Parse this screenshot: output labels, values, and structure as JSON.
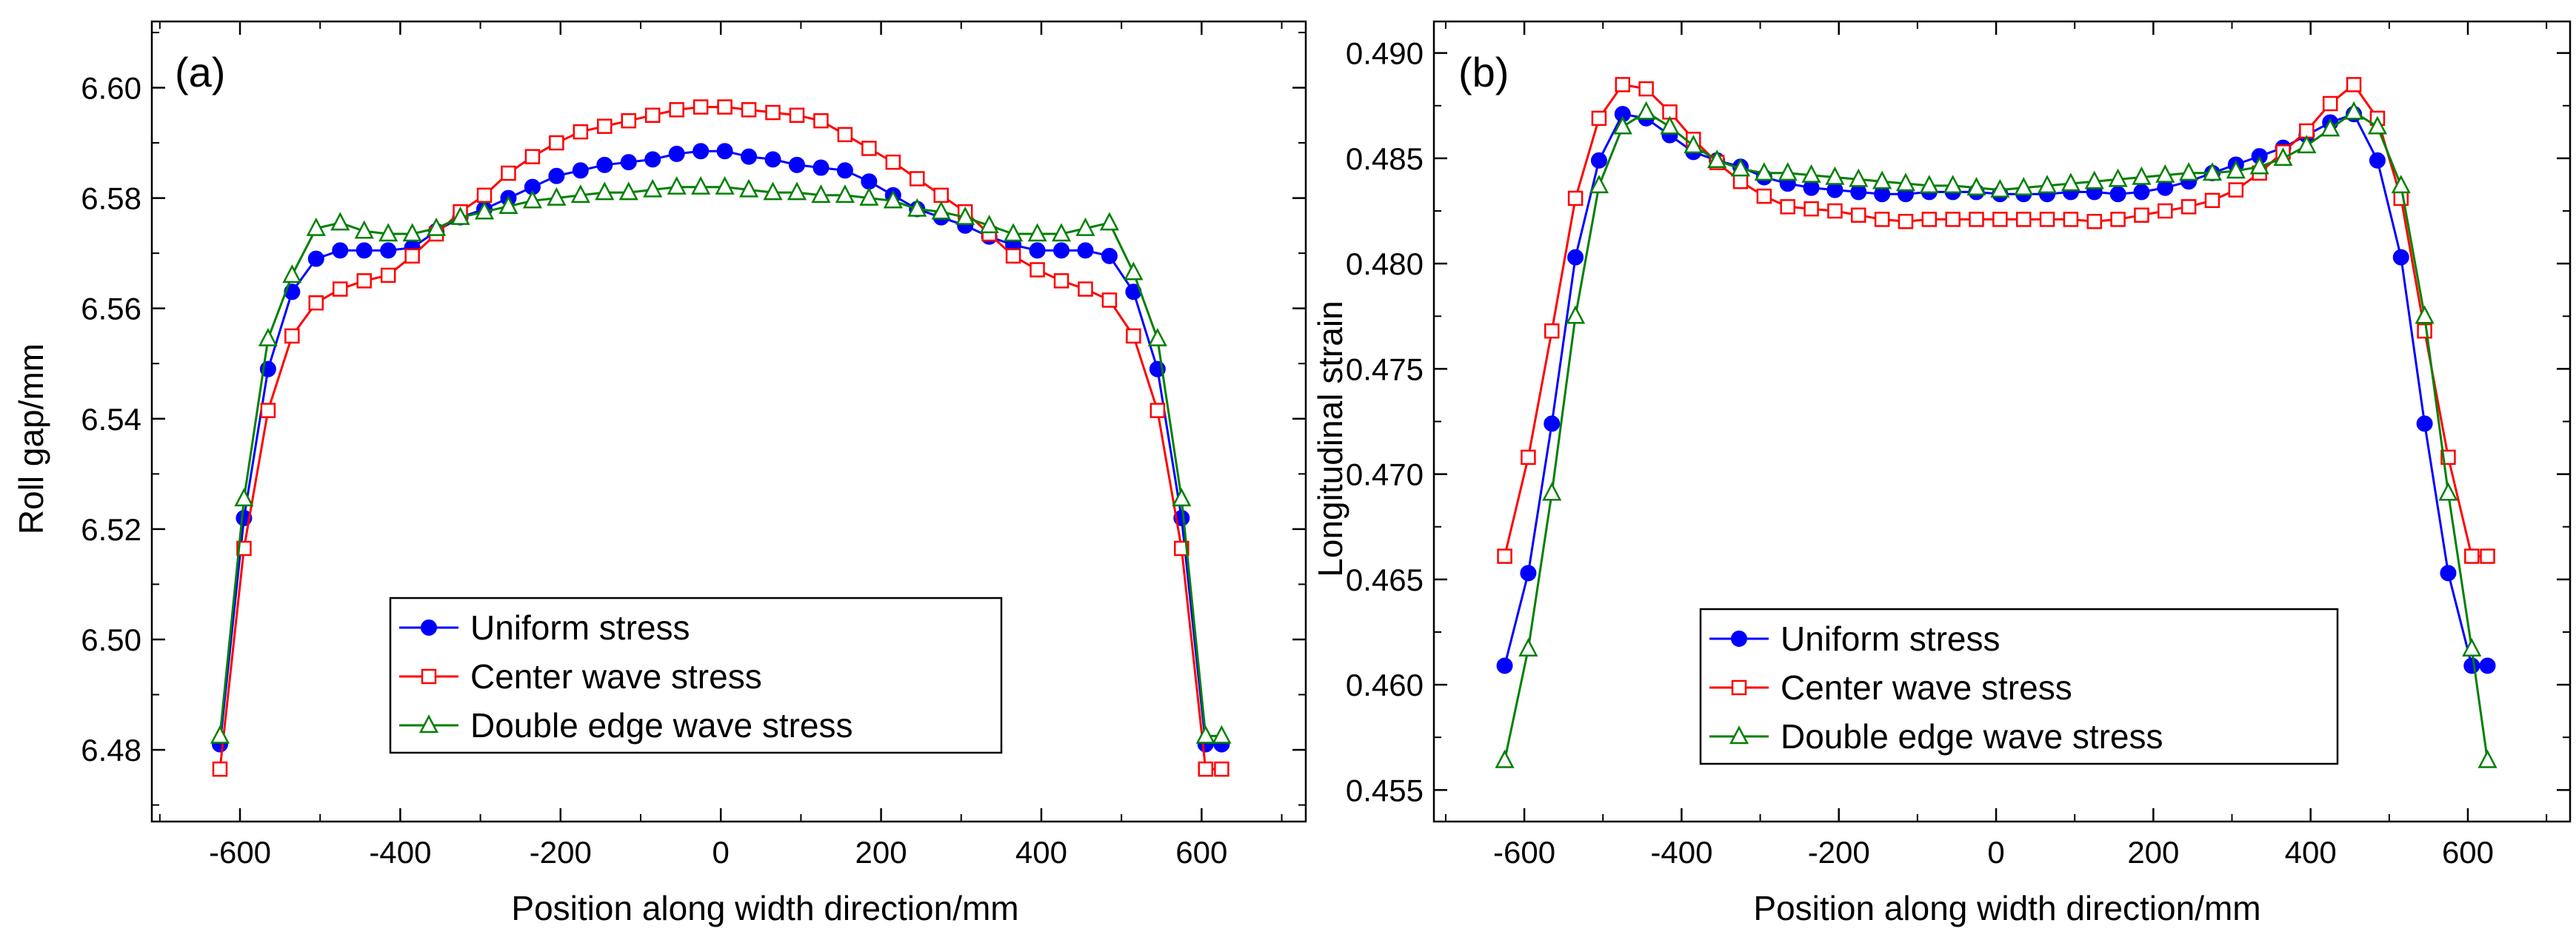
{
  "chart_data": [
    {
      "panel": "(a)",
      "type": "line",
      "title": "",
      "xlabel": "Position along width direction/mm",
      "ylabel": "Roll gap/mm",
      "xlim": [
        -710,
        730
      ],
      "ylim": [
        6.467,
        6.612
      ],
      "xticks": [
        -600,
        -400,
        -200,
        0,
        200,
        400,
        600
      ],
      "yticks": [
        6.48,
        6.5,
        6.52,
        6.54,
        6.56,
        6.58,
        6.6
      ],
      "ytick_decimals": 2,
      "legend_position": "bottom-center",
      "series": [
        {
          "name": "Uniform stress",
          "color": "#0000ff",
          "marker": "filled-circle",
          "x": [
            -625,
            -595,
            -565,
            -535,
            -505,
            -475,
            -445,
            -415,
            -385,
            -355,
            -325,
            -295,
            -265,
            -235,
            -205,
            -175,
            -145,
            -115,
            -85,
            -55,
            -25,
            5,
            35,
            65,
            95,
            125,
            155,
            185,
            215,
            245,
            275,
            305,
            335,
            365,
            395,
            425,
            455,
            485,
            515,
            545,
            575,
            605,
            625
          ],
          "y": [
            6.481,
            6.522,
            6.549,
            6.563,
            6.569,
            6.5705,
            6.5705,
            6.5705,
            6.571,
            6.574,
            6.5765,
            6.578,
            6.58,
            6.582,
            6.584,
            6.585,
            6.586,
            6.5865,
            6.587,
            6.588,
            6.5885,
            6.5885,
            6.5875,
            6.587,
            6.586,
            6.5855,
            6.585,
            6.583,
            6.5805,
            6.578,
            6.5765,
            6.575,
            6.573,
            6.5715,
            6.5705,
            6.5705,
            6.5705,
            6.5695,
            6.563,
            6.549,
            6.522,
            6.481,
            6.481
          ]
        },
        {
          "name": "Center wave stress",
          "color": "#ff0000",
          "marker": "open-square",
          "x": [
            -625,
            -595,
            -565,
            -535,
            -505,
            -475,
            -445,
            -415,
            -385,
            -355,
            -325,
            -295,
            -265,
            -235,
            -205,
            -175,
            -145,
            -115,
            -85,
            -55,
            -25,
            5,
            35,
            65,
            95,
            125,
            155,
            185,
            215,
            245,
            275,
            305,
            335,
            365,
            395,
            425,
            455,
            485,
            515,
            545,
            575,
            605,
            625
          ],
          "y": [
            6.4765,
            6.5165,
            6.5415,
            6.555,
            6.561,
            6.5635,
            6.565,
            6.566,
            6.5695,
            6.5735,
            6.5775,
            6.5805,
            6.5845,
            6.5875,
            6.59,
            6.592,
            6.593,
            6.594,
            6.595,
            6.596,
            6.5965,
            6.5965,
            6.596,
            6.5955,
            6.595,
            6.594,
            6.5915,
            6.589,
            6.5865,
            6.5835,
            6.5805,
            6.5775,
            6.5735,
            6.5695,
            6.567,
            6.565,
            6.5635,
            6.5615,
            6.555,
            6.5415,
            6.5165,
            6.4765,
            6.4765
          ]
        },
        {
          "name": "Double edge wave stress",
          "color": "#008000",
          "marker": "open-triangle",
          "x": [
            -625,
            -595,
            -565,
            -535,
            -505,
            -475,
            -445,
            -415,
            -385,
            -355,
            -325,
            -295,
            -265,
            -235,
            -205,
            -175,
            -145,
            -115,
            -85,
            -55,
            -25,
            5,
            35,
            65,
            95,
            125,
            155,
            185,
            215,
            245,
            275,
            305,
            335,
            365,
            395,
            425,
            455,
            485,
            515,
            545,
            575,
            605,
            625
          ],
          "y": [
            6.4825,
            6.5255,
            6.5545,
            6.566,
            6.5745,
            6.5755,
            6.574,
            6.5735,
            6.5735,
            6.5745,
            6.5765,
            6.5775,
            6.5785,
            6.5795,
            6.58,
            6.5805,
            6.581,
            6.581,
            6.5815,
            6.582,
            6.582,
            6.582,
            6.5815,
            6.581,
            6.581,
            6.5805,
            6.5805,
            6.58,
            6.5795,
            6.578,
            6.5775,
            6.5765,
            6.575,
            6.5735,
            6.5735,
            6.5735,
            6.5745,
            6.5755,
            6.5665,
            6.5545,
            6.5255,
            6.4825,
            6.4825
          ]
        }
      ]
    },
    {
      "panel": "(b)",
      "type": "line",
      "title": "",
      "xlabel": "Position along width direction/mm",
      "ylabel": "Longitudinal strain",
      "xlim": [
        -715,
        730
      ],
      "ylim": [
        0.4535,
        0.4915
      ],
      "xticks": [
        -600,
        -400,
        -200,
        0,
        200,
        400,
        600
      ],
      "yticks": [
        0.455,
        0.46,
        0.465,
        0.47,
        0.475,
        0.48,
        0.485,
        0.49
      ],
      "ytick_decimals": 3,
      "legend_position": "bottom-center",
      "series": [
        {
          "name": "Uniform stress",
          "color": "#0000ff",
          "marker": "filled-circle",
          "x": [
            -625,
            -595,
            -565,
            -535,
            -505,
            -475,
            -445,
            -415,
            -385,
            -355,
            -325,
            -295,
            -265,
            -235,
            -205,
            -175,
            -145,
            -115,
            -85,
            -55,
            -25,
            5,
            35,
            65,
            95,
            125,
            155,
            185,
            215,
            245,
            275,
            305,
            335,
            365,
            395,
            425,
            455,
            485,
            515,
            545,
            575,
            605,
            625
          ],
          "y": [
            0.4609,
            0.4653,
            0.4724,
            0.4803,
            0.4849,
            0.4871,
            0.4869,
            0.4861,
            0.4853,
            0.4849,
            0.4846,
            0.4841,
            0.4838,
            0.4836,
            0.4835,
            0.4834,
            0.4833,
            0.4833,
            0.4834,
            0.4834,
            0.4834,
            0.4833,
            0.4833,
            0.4833,
            0.4834,
            0.4834,
            0.4833,
            0.4834,
            0.4836,
            0.4839,
            0.4843,
            0.4847,
            0.4851,
            0.4855,
            0.4861,
            0.4867,
            0.4871,
            0.4849,
            0.4803,
            0.4724,
            0.4653,
            0.4609,
            0.4609
          ]
        },
        {
          "name": "Center wave stress",
          "color": "#ff0000",
          "marker": "open-square",
          "x": [
            -625,
            -595,
            -565,
            -535,
            -505,
            -475,
            -445,
            -415,
            -385,
            -355,
            -325,
            -295,
            -265,
            -235,
            -205,
            -175,
            -145,
            -115,
            -85,
            -55,
            -25,
            5,
            35,
            65,
            95,
            125,
            155,
            185,
            215,
            245,
            275,
            305,
            335,
            365,
            395,
            425,
            455,
            485,
            515,
            545,
            575,
            605,
            625
          ],
          "y": [
            0.4661,
            0.4708,
            0.4768,
            0.4831,
            0.4869,
            0.4885,
            0.4883,
            0.4872,
            0.4859,
            0.4848,
            0.4839,
            0.4832,
            0.4827,
            0.4826,
            0.4825,
            0.4823,
            0.4821,
            0.482,
            0.4821,
            0.4821,
            0.4821,
            0.4821,
            0.4821,
            0.4821,
            0.4821,
            0.482,
            0.4821,
            0.4823,
            0.4825,
            0.4827,
            0.483,
            0.4835,
            0.4843,
            0.4853,
            0.4863,
            0.4876,
            0.4885,
            0.4869,
            0.4831,
            0.4768,
            0.4708,
            0.4661,
            0.4661
          ]
        },
        {
          "name": "Double edge wave stress",
          "color": "#008000",
          "marker": "open-triangle",
          "x": [
            -625,
            -595,
            -565,
            -535,
            -505,
            -475,
            -445,
            -415,
            -385,
            -355,
            -325,
            -295,
            -265,
            -235,
            -205,
            -175,
            -145,
            -115,
            -85,
            -55,
            -25,
            5,
            35,
            65,
            95,
            125,
            155,
            185,
            215,
            245,
            275,
            305,
            335,
            365,
            395,
            425,
            455,
            485,
            515,
            545,
            575,
            605,
            625
          ],
          "y": [
            0.4564,
            0.4617,
            0.4691,
            0.4775,
            0.4837,
            0.4865,
            0.4872,
            0.4865,
            0.4856,
            0.4849,
            0.4845,
            0.4843,
            0.4843,
            0.4842,
            0.4841,
            0.484,
            0.4839,
            0.4838,
            0.4837,
            0.4837,
            0.4836,
            0.4835,
            0.4836,
            0.4837,
            0.4838,
            0.4839,
            0.484,
            0.4841,
            0.4842,
            0.4843,
            0.4843,
            0.4844,
            0.4846,
            0.485,
            0.4856,
            0.4864,
            0.4872,
            0.4865,
            0.4837,
            0.4775,
            0.4691,
            0.4617,
            0.4564
          ]
        }
      ]
    }
  ]
}
